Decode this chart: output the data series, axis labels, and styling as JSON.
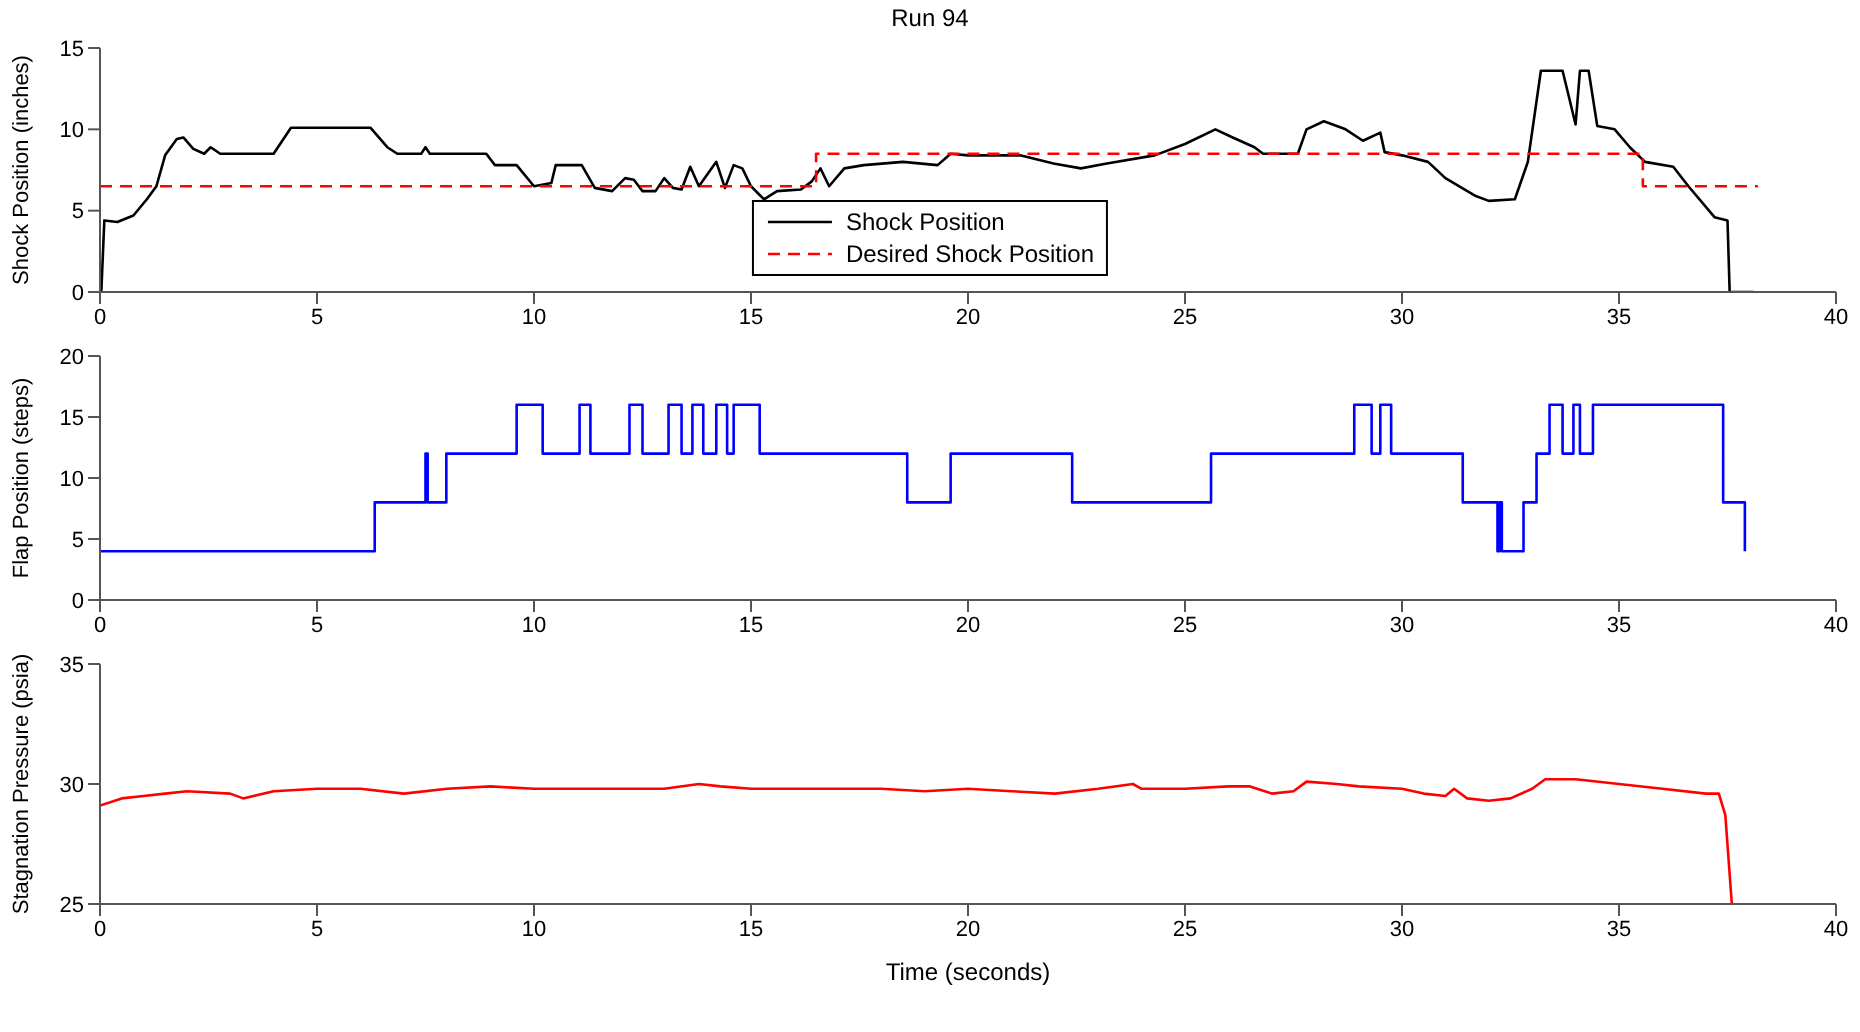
{
  "chart_data": [
    {
      "type": "line",
      "title": "Run 94",
      "ylabel": "Shock Position (inches)",
      "xlim": [
        0,
        40
      ],
      "xticks": [
        0,
        5,
        10,
        15,
        20,
        25,
        30,
        35,
        40
      ],
      "ylim": [
        0,
        15
      ],
      "yticks": [
        0,
        5,
        10,
        15
      ],
      "legend": "bottom",
      "series": [
        {
          "name": "Shock Position",
          "color": "#000000",
          "line_style": "solid",
          "x": [
            0.03,
            0.1,
            0.4,
            0.77,
            1.08,
            1.3,
            1.5,
            1.77,
            1.92,
            2.15,
            2.4,
            2.55,
            2.77,
            4.0,
            4.4,
            6.23,
            6.62,
            6.85,
            7.4,
            7.5,
            7.6,
            8.9,
            9.1,
            9.6,
            10.0,
            10.4,
            10.5,
            11.1,
            11.4,
            11.8,
            12.1,
            12.3,
            12.5,
            12.8,
            13.0,
            13.2,
            13.4,
            13.6,
            13.8,
            14.2,
            14.4,
            14.6,
            14.8,
            15.0,
            15.3,
            15.6,
            16.15,
            16.4,
            16.6,
            16.8,
            17.15,
            17.6,
            18.5,
            19.3,
            19.6,
            20.0,
            20.3,
            21.2,
            21.97,
            22.6,
            23.2,
            24.3,
            25.0,
            25.7,
            26.1,
            26.6,
            26.8,
            27.6,
            27.8,
            28.2,
            28.7,
            29.1,
            29.5,
            29.6,
            30.0,
            30.6,
            31.0,
            31.7,
            32.0,
            32.6,
            32.9,
            33.2,
            33.7,
            34.0,
            34.1,
            34.3,
            34.5,
            34.9,
            35.25,
            35.6,
            36.25,
            36.6,
            37.2,
            37.5,
            37.55,
            38.1
          ],
          "values": [
            0,
            4.4,
            4.3,
            4.7,
            5.7,
            6.5,
            8.4,
            9.4,
            9.5,
            8.8,
            8.5,
            8.9,
            8.5,
            8.5,
            10.1,
            10.1,
            8.9,
            8.5,
            8.5,
            8.9,
            8.5,
            8.5,
            7.8,
            7.8,
            6.5,
            6.7,
            7.8,
            7.8,
            6.4,
            6.2,
            7.0,
            6.9,
            6.2,
            6.2,
            7.0,
            6.4,
            6.3,
            7.7,
            6.5,
            8.0,
            6.4,
            7.8,
            7.6,
            6.5,
            5.7,
            6.2,
            6.3,
            6.8,
            7.6,
            6.5,
            7.6,
            7.8,
            8.0,
            7.8,
            8.5,
            8.4,
            8.4,
            8.4,
            7.9,
            7.6,
            7.9,
            8.4,
            9.1,
            10.0,
            9.5,
            8.9,
            8.5,
            8.5,
            10.0,
            10.5,
            10.0,
            9.3,
            9.8,
            8.6,
            8.4,
            8.0,
            7.0,
            5.9,
            5.6,
            5.7,
            8.0,
            13.6,
            13.6,
            10.3,
            13.6,
            13.6,
            10.2,
            10.0,
            8.9,
            8.0,
            7.7,
            6.5,
            4.6,
            4.4,
            0,
            0
          ]
        },
        {
          "name": "Desired Shock Position",
          "type": "step",
          "color": "#ff0000",
          "line_style": "dashed",
          "x": [
            0,
            16.5,
            35.55,
            38.2
          ],
          "values": [
            6.5,
            8.5,
            6.5,
            6.5
          ]
        }
      ]
    },
    {
      "type": "step",
      "ylabel": "Flap Position (steps)",
      "xlim": [
        0,
        40
      ],
      "xticks": [
        0,
        5,
        10,
        15,
        20,
        25,
        30,
        35,
        40
      ],
      "ylim": [
        0,
        20
      ],
      "yticks": [
        0,
        5,
        10,
        15,
        20
      ],
      "series": [
        {
          "color": "#0000ff",
          "line_style": "solid",
          "x": [
            0,
            6.33,
            7.5,
            7.55,
            7.98,
            9.6,
            10.2,
            11.05,
            11.3,
            12.2,
            12.5,
            13.1,
            13.4,
            13.65,
            13.9,
            14.2,
            14.45,
            14.6,
            15.2,
            18.6,
            19.6,
            22.4,
            25.6,
            28.9,
            29.3,
            29.5,
            29.75,
            31.4,
            32.2,
            32.25,
            32.3,
            32.8,
            33.1,
            33.4,
            33.7,
            33.95,
            34.1,
            34.4,
            37.4,
            37.9
          ],
          "values": [
            4,
            8,
            12,
            8,
            12,
            16,
            12,
            16,
            12,
            16,
            12,
            16,
            12,
            16,
            12,
            16,
            12,
            16,
            12,
            8,
            12,
            8,
            12,
            16,
            12,
            16,
            12,
            8,
            4,
            8,
            4,
            8,
            12,
            16,
            12,
            16,
            12,
            16,
            8,
            4
          ]
        }
      ]
    },
    {
      "type": "line",
      "xlabel": "Time (seconds)",
      "ylabel": "Stagnation Pressure (psia)",
      "xlim": [
        0,
        40
      ],
      "xticks": [
        0,
        5,
        10,
        15,
        20,
        25,
        30,
        35,
        40
      ],
      "ylim": [
        25,
        35
      ],
      "yticks": [
        25,
        30,
        35
      ],
      "series": [
        {
          "color": "#ff0000",
          "line_style": "solid",
          "x": [
            0,
            0.5,
            1,
            1.5,
            2,
            3,
            3.3,
            4,
            5,
            6,
            7,
            8,
            9,
            10,
            11,
            12,
            13,
            13.8,
            14.3,
            15,
            16,
            17,
            18,
            19,
            20,
            21,
            22,
            23,
            23.8,
            24,
            25,
            26,
            26.5,
            27,
            27.5,
            27.8,
            28.5,
            29,
            30,
            30.5,
            31,
            31.2,
            31.5,
            32,
            32.5,
            33,
            33.3,
            34,
            35,
            36,
            37,
            37.3,
            37.45,
            37.6
          ],
          "values": [
            29.1,
            29.4,
            29.5,
            29.6,
            29.7,
            29.6,
            29.4,
            29.7,
            29.8,
            29.8,
            29.6,
            29.8,
            29.9,
            29.8,
            29.8,
            29.8,
            29.8,
            30.0,
            29.9,
            29.8,
            29.8,
            29.8,
            29.8,
            29.7,
            29.8,
            29.7,
            29.6,
            29.8,
            30.0,
            29.8,
            29.8,
            29.9,
            29.9,
            29.6,
            29.7,
            30.1,
            30.0,
            29.9,
            29.8,
            29.6,
            29.5,
            29.8,
            29.4,
            29.3,
            29.4,
            29.8,
            30.2,
            30.2,
            30.0,
            29.8,
            29.6,
            29.6,
            28.7,
            25.0
          ]
        }
      ]
    }
  ]
}
